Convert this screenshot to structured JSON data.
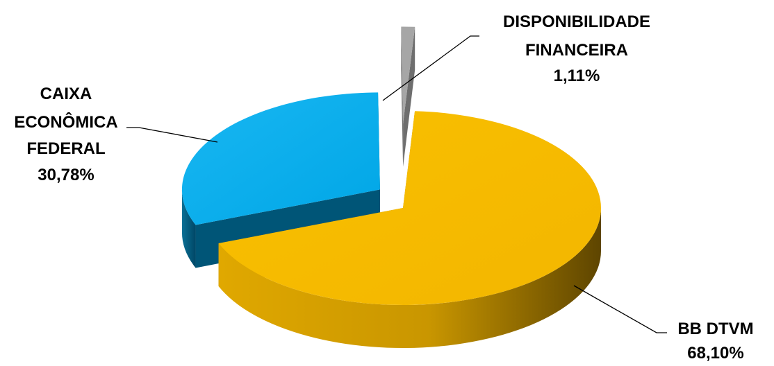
{
  "chart_data": {
    "type": "pie",
    "style": "3d-exploded",
    "slices": [
      {
        "label_lines": [
          "BB DTVM"
        ],
        "value": 68.1,
        "value_label": "68,10%",
        "color": "#F7BB00",
        "side_color": "#B28600"
      },
      {
        "label_lines": [
          "CAIXA",
          "ECONÔMICA",
          "FEDERAL"
        ],
        "value": 30.78,
        "value_label": "30,78%",
        "color": "#00AEEF",
        "side_color": "#005577"
      },
      {
        "label_lines": [
          "DISPONIBILIDADE",
          "FINANCEIRA"
        ],
        "value": 1.11,
        "value_label": "1,11%",
        "color": "#A6A6A6",
        "side_color": "#6E6E6E"
      }
    ]
  }
}
